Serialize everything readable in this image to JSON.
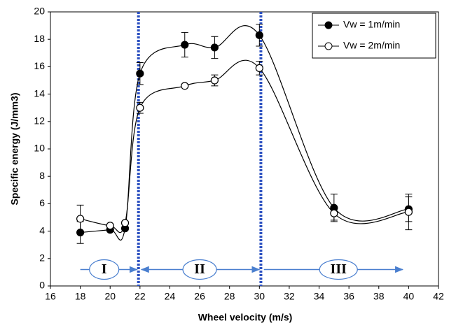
{
  "chart_data": {
    "type": "line",
    "x_label": "Wheel velocity (m/s)",
    "y_label": "Specific energy (J/mm3)",
    "x": [
      18,
      20,
      21,
      22,
      25,
      27,
      30,
      35,
      40
    ],
    "series": [
      {
        "name": "Vw  = 1m/min",
        "color": "#000000",
        "marker": "filled",
        "values": [
          3.9,
          4.1,
          4.2,
          15.5,
          17.6,
          17.4,
          18.3,
          5.7,
          5.6
        ],
        "errors": [
          0.8,
          null,
          null,
          0.8,
          0.9,
          0.8,
          0.8,
          1.0,
          0.9
        ]
      },
      {
        "name": "Vw  = 2m/min",
        "color": "#000000",
        "marker": "open",
        "values": [
          4.9,
          4.4,
          4.6,
          13.0,
          14.6,
          15.0,
          15.9,
          5.3,
          5.4
        ],
        "errors": [
          1.0,
          null,
          null,
          0.4,
          null,
          0.4,
          0.5,
          0.5,
          1.3
        ]
      }
    ],
    "xlim": [
      16,
      42
    ],
    "xticks": [
      16,
      18,
      20,
      22,
      24,
      26,
      28,
      30,
      32,
      34,
      36,
      38,
      40,
      42
    ],
    "ylim": [
      0,
      20
    ],
    "yticks": [
      0,
      2,
      4,
      6,
      8,
      10,
      12,
      14,
      16,
      18,
      20
    ],
    "grid": false,
    "legend": "upper right",
    "dividers": [
      21.9,
      30.1
    ],
    "divider_color": "#2a4fc0",
    "regions": [
      {
        "label": "I",
        "from": 18,
        "to": 21.8,
        "label_x": 19.6,
        "y": 1.2,
        "both_ends": false
      },
      {
        "label": "II",
        "from": 22.1,
        "to": 30,
        "label_x": 26,
        "y": 1.2,
        "both_ends": true
      },
      {
        "label": "III",
        "from": 30.3,
        "to": 39.6,
        "label_x": 35.3,
        "y": 1.2,
        "both_ends": false
      }
    ],
    "region_color": "#4a7fcf"
  }
}
